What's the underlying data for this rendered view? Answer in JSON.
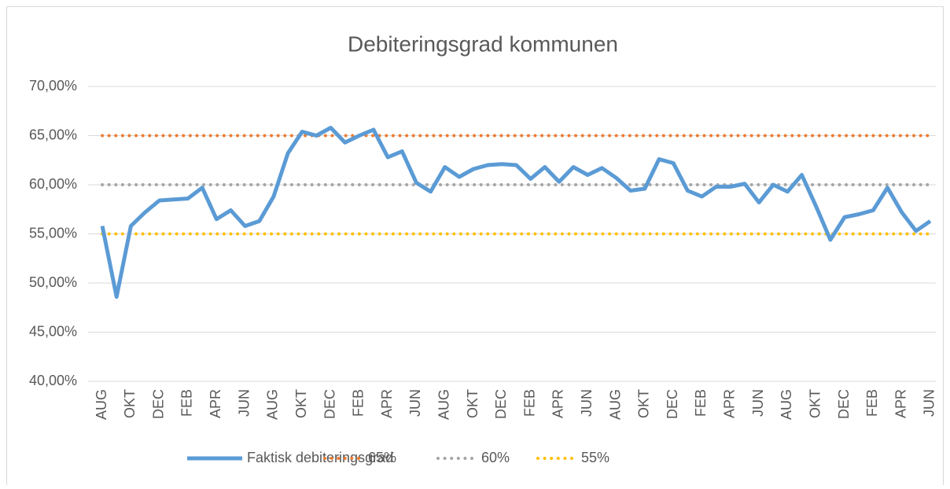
{
  "chart_data": {
    "type": "line",
    "title": "Debiteringsgrad kommunen",
    "categories": [
      "AUG",
      null,
      "OKT",
      null,
      "DEC",
      null,
      "FEB",
      null,
      "APR",
      null,
      "JUN",
      null,
      "AUG",
      null,
      "OKT",
      null,
      "DEC",
      null,
      "FEB",
      null,
      "APR",
      null,
      "JUN",
      null,
      "AUG",
      null,
      "OKT",
      null,
      "DEC",
      null,
      "FEB",
      null,
      "APR",
      null,
      "JUN",
      null,
      "AUG",
      null,
      "OKT",
      null,
      "DEC",
      null,
      "FEB",
      null,
      "APR",
      null,
      "JUN",
      null,
      "AUG",
      null,
      "OKT",
      null,
      "DEC",
      null,
      "FEB",
      null,
      "APR",
      null,
      "JUN"
    ],
    "series": [
      {
        "name": "Faktisk debiteringsgrad",
        "color": "#5b9bd5",
        "style": "solid",
        "values": [
          55.8,
          48.6,
          55.8,
          57.2,
          58.4,
          58.5,
          58.6,
          59.7,
          56.5,
          57.4,
          55.8,
          56.3,
          58.8,
          63.2,
          65.4,
          65.0,
          65.8,
          64.3,
          65.0,
          65.6,
          62.8,
          63.4,
          60.2,
          59.3,
          61.8,
          60.8,
          61.6,
          62.0,
          62.1,
          62.0,
          60.6,
          61.8,
          60.3,
          61.8,
          61.0,
          61.7,
          60.7,
          59.4,
          59.6,
          62.6,
          62.2,
          59.4,
          58.8,
          59.8,
          59.8,
          60.1,
          58.2,
          60.0,
          59.3,
          61.0,
          57.8,
          54.4,
          56.7,
          57.0,
          57.4,
          59.7,
          57.2,
          55.3,
          56.3
        ]
      },
      {
        "name": "65%",
        "color": "#ed7d31",
        "style": "dotted",
        "values": [
          65,
          65,
          65,
          65,
          65,
          65,
          65,
          65,
          65,
          65,
          65,
          65,
          65,
          65,
          65,
          65,
          65,
          65,
          65,
          65,
          65,
          65,
          65,
          65,
          65,
          65,
          65,
          65,
          65,
          65,
          65,
          65,
          65,
          65,
          65,
          65,
          65,
          65,
          65,
          65,
          65,
          65,
          65,
          65,
          65,
          65,
          65,
          65,
          65,
          65,
          65,
          65,
          65,
          65,
          65,
          65,
          65,
          65,
          65
        ]
      },
      {
        "name": "60%",
        "color": "#a5a5a5",
        "style": "dotted",
        "values": [
          60,
          60,
          60,
          60,
          60,
          60,
          60,
          60,
          60,
          60,
          60,
          60,
          60,
          60,
          60,
          60,
          60,
          60,
          60,
          60,
          60,
          60,
          60,
          60,
          60,
          60,
          60,
          60,
          60,
          60,
          60,
          60,
          60,
          60,
          60,
          60,
          60,
          60,
          60,
          60,
          60,
          60,
          60,
          60,
          60,
          60,
          60,
          60,
          60,
          60,
          60,
          60,
          60,
          60,
          60,
          60,
          60,
          60,
          60
        ]
      },
      {
        "name": "55%",
        "color": "#ffc000",
        "style": "dotted",
        "values": [
          55,
          55,
          55,
          55,
          55,
          55,
          55,
          55,
          55,
          55,
          55,
          55,
          55,
          55,
          55,
          55,
          55,
          55,
          55,
          55,
          55,
          55,
          55,
          55,
          55,
          55,
          55,
          55,
          55,
          55,
          55,
          55,
          55,
          55,
          55,
          55,
          55,
          55,
          55,
          55,
          55,
          55,
          55,
          55,
          55,
          55,
          55,
          55,
          55,
          55,
          55,
          55,
          55,
          55,
          55,
          55,
          55,
          55,
          55
        ]
      }
    ],
    "ylim": [
      40,
      70
    ],
    "yticks": [
      {
        "value": 40,
        "label": "40,00%"
      },
      {
        "value": 45,
        "label": "45,00%"
      },
      {
        "value": 50,
        "label": "50,00%"
      },
      {
        "value": 55,
        "label": "55,00%"
      },
      {
        "value": 60,
        "label": "60,00%"
      },
      {
        "value": 65,
        "label": "65,00%"
      },
      {
        "value": 70,
        "label": "70,00%"
      }
    ],
    "grid": true,
    "legend": "bottom"
  }
}
